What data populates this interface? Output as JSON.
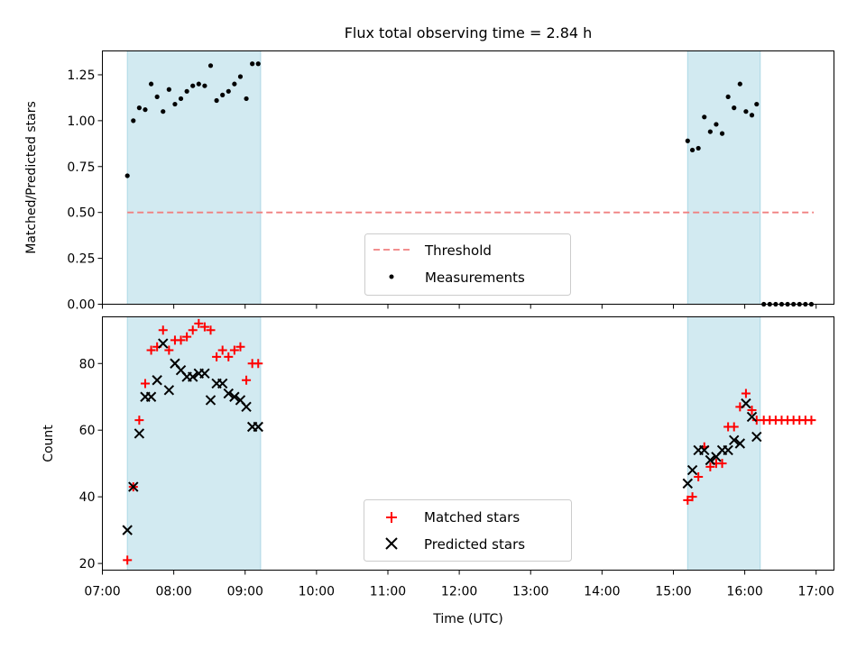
{
  "chart_data": [
    {
      "type": "scatter",
      "title": "Flux total observing time = 2.84 h",
      "ylabel": "Matched/Predicted stars",
      "xlabel": "",
      "xlim": [
        "07:00",
        "17:15"
      ],
      "ylim": [
        0,
        1.38
      ],
      "y_ticks": [
        0.0,
        0.25,
        0.5,
        0.75,
        1.0,
        1.25
      ],
      "y_tick_labels": [
        "0.00",
        "0.25",
        "0.50",
        "0.75",
        "1.00",
        "1.25"
      ],
      "grid": false,
      "legend_position": "lower-center",
      "shaded_intervals": [
        [
          "07:21",
          "09:13"
        ],
        [
          "15:12",
          "16:13"
        ]
      ],
      "shade_color": "#add8e6",
      "threshold": {
        "name": "Threshold",
        "value": 0.5,
        "x_range": [
          "07:21",
          "16:58"
        ],
        "color": "#f08080",
        "style": "dashed"
      },
      "series": [
        {
          "name": "Measurements",
          "color": "#000000",
          "marker": "dot",
          "x": [
            "07:21",
            "07:26",
            "07:31",
            "07:36",
            "07:41",
            "07:46",
            "07:51",
            "07:56",
            "08:01",
            "08:06",
            "08:11",
            "08:16",
            "08:21",
            "08:26",
            "08:31",
            "08:36",
            "08:41",
            "08:46",
            "08:51",
            "08:56",
            "09:01",
            "09:06",
            "09:11",
            "15:12",
            "15:16",
            "15:21",
            "15:26",
            "15:31",
            "15:36",
            "15:41",
            "15:46",
            "15:51",
            "15:56",
            "16:01",
            "16:06",
            "16:10",
            "16:16",
            "16:21",
            "16:26",
            "16:31",
            "16:36",
            "16:41",
            "16:46",
            "16:51",
            "16:56"
          ],
          "y": [
            0.7,
            1.0,
            1.07,
            1.06,
            1.2,
            1.13,
            1.05,
            1.17,
            1.09,
            1.12,
            1.16,
            1.19,
            1.2,
            1.19,
            1.3,
            1.11,
            1.14,
            1.16,
            1.2,
            1.24,
            1.12,
            1.31,
            1.31,
            0.89,
            0.84,
            0.85,
            1.02,
            0.94,
            0.98,
            0.93,
            1.13,
            1.07,
            1.2,
            1.05,
            1.03,
            1.09,
            0,
            0,
            0,
            0,
            0,
            0,
            0,
            0,
            0
          ]
        }
      ]
    },
    {
      "type": "scatter",
      "title": "",
      "ylabel": "Count",
      "xlabel": "Time (UTC)",
      "xlim": [
        "07:00",
        "17:15"
      ],
      "ylim": [
        18,
        94
      ],
      "y_ticks": [
        20,
        40,
        60,
        80
      ],
      "y_tick_labels": [
        "20",
        "40",
        "60",
        "80"
      ],
      "x_ticks": [
        "07:00",
        "08:00",
        "09:00",
        "10:00",
        "11:00",
        "12:00",
        "13:00",
        "14:00",
        "15:00",
        "16:00",
        "17:00"
      ],
      "grid": false,
      "legend_position": "lower-center",
      "shaded_intervals": [
        [
          "07:21",
          "09:13"
        ],
        [
          "15:12",
          "16:13"
        ]
      ],
      "shade_color": "#add8e6",
      "series": [
        {
          "name": "Matched stars",
          "color": "#ff0000",
          "marker": "plus",
          "x": [
            "07:21",
            "07:26",
            "07:31",
            "07:36",
            "07:41",
            "07:46",
            "07:51",
            "07:56",
            "08:01",
            "08:06",
            "08:11",
            "08:16",
            "08:21",
            "08:26",
            "08:31",
            "08:36",
            "08:41",
            "08:46",
            "08:51",
            "08:56",
            "09:01",
            "09:06",
            "09:11",
            "15:12",
            "15:16",
            "15:21",
            "15:26",
            "15:31",
            "15:36",
            "15:41",
            "15:46",
            "15:51",
            "15:56",
            "16:01",
            "16:06",
            "16:10",
            "16:16",
            "16:21",
            "16:26",
            "16:31",
            "16:36",
            "16:41",
            "16:46",
            "16:51",
            "16:56"
          ],
          "y": [
            21,
            43,
            63,
            74,
            84,
            85,
            90,
            84,
            87,
            87,
            88,
            90,
            92,
            91,
            90,
            82,
            84,
            82,
            84,
            85,
            75,
            80,
            80,
            39,
            40,
            46,
            55,
            49,
            50,
            50,
            61,
            61,
            67,
            71,
            66,
            63,
            63,
            63,
            63,
            63,
            63,
            63,
            63,
            63,
            63
          ]
        },
        {
          "name": "Predicted stars",
          "color": "#000000",
          "marker": "x",
          "x": [
            "07:21",
            "07:26",
            "07:31",
            "07:36",
            "07:41",
            "07:46",
            "07:51",
            "07:56",
            "08:01",
            "08:06",
            "08:11",
            "08:16",
            "08:21",
            "08:26",
            "08:31",
            "08:36",
            "08:41",
            "08:46",
            "08:51",
            "08:56",
            "09:01",
            "09:06",
            "09:11",
            "15:12",
            "15:16",
            "15:21",
            "15:26",
            "15:31",
            "15:36",
            "15:41",
            "15:46",
            "15:51",
            "15:56",
            "16:01",
            "16:06",
            "16:10"
          ],
          "y": [
            30,
            43,
            59,
            70,
            70,
            75,
            86,
            72,
            80,
            78,
            76,
            76,
            77,
            77,
            69,
            74,
            74,
            71,
            70,
            69,
            67,
            61,
            61,
            44,
            48,
            54,
            54,
            51,
            52,
            54,
            54,
            57,
            56,
            68,
            64,
            58
          ]
        }
      ]
    }
  ]
}
